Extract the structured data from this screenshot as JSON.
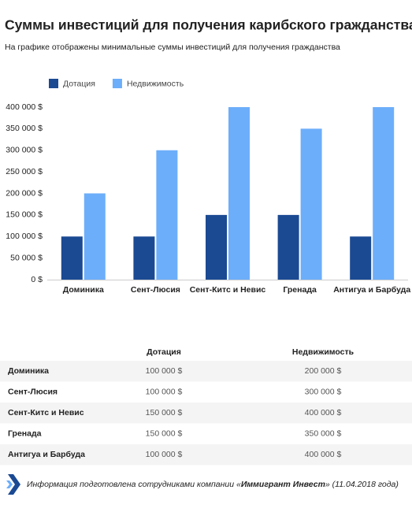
{
  "chart_data": {
    "type": "bar",
    "title": "Суммы инвестиций для получения карибского гражданства",
    "subtitle": "На графике отображены минимальные суммы инвестиций для получения гражданства",
    "categories": [
      "Доминика",
      "Сент-Люсия",
      "Сент-Китс и Невис",
      "Гренада",
      "Антигуа и Барбуда"
    ],
    "series": [
      {
        "name": "Дотация",
        "color": "#1b4a93",
        "values": [
          100000,
          100000,
          150000,
          150000,
          100000
        ]
      },
      {
        "name": "Недвижимость",
        "color": "#6caefa",
        "values": [
          200000,
          300000,
          400000,
          350000,
          400000
        ]
      }
    ],
    "ylim": [
      0,
      400000
    ],
    "yticks": [
      {
        "value": 0,
        "label": "0 $"
      },
      {
        "value": 50000,
        "label": "50 000 $"
      },
      {
        "value": 100000,
        "label": "100 000 $"
      },
      {
        "value": 150000,
        "label": "150 000 $"
      },
      {
        "value": 200000,
        "label": "200 000 $"
      },
      {
        "value": 250000,
        "label": "250 000 $"
      },
      {
        "value": 300000,
        "label": "300 000 $"
      },
      {
        "value": 350000,
        "label": "350 000 $"
      },
      {
        "value": 400000,
        "label": "400 000 $"
      }
    ],
    "grid": false,
    "legend": "top-left"
  },
  "table": {
    "columns": [
      "Дотация",
      "Недвижимость"
    ],
    "rows": [
      [
        "Доминика",
        "100 000 $",
        "200 000 $"
      ],
      [
        "Сент-Люсия",
        "100 000 $",
        "300 000 $"
      ],
      [
        "Сент-Китс и Невис",
        "150 000 $",
        "400 000 $"
      ],
      [
        "Гренада",
        "150 000 $",
        "350 000 $"
      ],
      [
        "Антигуа и Барбуда",
        "100 000 $",
        "400 000 $"
      ]
    ]
  },
  "footer": {
    "prefix": "Информация подготовлена сотрудниками компании «",
    "company": "Иммигрант Инвест",
    "suffix": "» (11.04.2018 года)"
  }
}
